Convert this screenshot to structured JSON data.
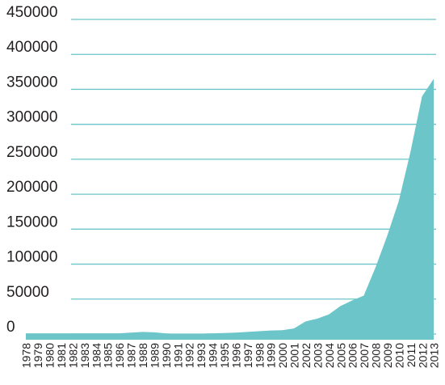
{
  "chart_data": {
    "type": "area",
    "categories": [
      "1978",
      "1979",
      "1980",
      "1981",
      "1982",
      "1983",
      "1984",
      "1985",
      "1986",
      "1987",
      "1988",
      "1989",
      "1990",
      "1991",
      "1992",
      "1993",
      "1994",
      "1995",
      "1996",
      "1997",
      "1998",
      "1999",
      "2000",
      "2001",
      "2002",
      "2003",
      "2004",
      "2005",
      "2006",
      "2007",
      "2008",
      "2009",
      "2010",
      "2011",
      "2012",
      "2013"
    ],
    "values": [
      1000,
      1000,
      1000,
      1000,
      1000,
      1000,
      1000,
      1000,
      1000,
      2000,
      3000,
      2500,
      1000,
      0,
      0,
      500,
      1000,
      1500,
      2000,
      3000,
      4000,
      5000,
      5500,
      8000,
      18000,
      22000,
      28000,
      40000,
      48000,
      55000,
      95000,
      140000,
      190000,
      260000,
      340000,
      365000
    ],
    "color": "#6cc5c8",
    "ylim": [
      0,
      450000
    ],
    "yticks": [
      0,
      50000,
      100000,
      150000,
      200000,
      250000,
      300000,
      350000,
      400000,
      450000
    ],
    "grid": true
  }
}
